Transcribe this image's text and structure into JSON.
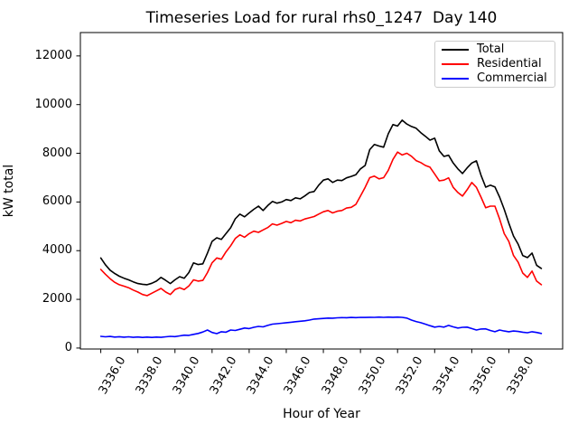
{
  "chart_data": {
    "type": "line",
    "title": "Timeseries Load for rural rhs0_1247  Day 140",
    "xlabel": "Hour of Year",
    "ylabel": "kW total",
    "xlim": [
      3334.9,
      3360.9
    ],
    "ylim": [
      -40,
      12960
    ],
    "grid": false,
    "legend_position": "upper right",
    "xticks": {
      "values": [
        3336,
        3338,
        3340,
        3342,
        3344,
        3346,
        3348,
        3350,
        3352,
        3354,
        3356,
        3358
      ],
      "labels": [
        "3336.0",
        "3338.0",
        "3340.0",
        "3342.0",
        "3344.0",
        "3346.0",
        "3348.0",
        "3350.0",
        "3352.0",
        "3354.0",
        "3356.0",
        "3358.0"
      ]
    },
    "yticks": {
      "values": [
        0,
        2000,
        4000,
        6000,
        8000,
        10000,
        12000
      ],
      "labels": [
        "0",
        "2000",
        "4000",
        "6000",
        "8000",
        "10000",
        "12000"
      ]
    },
    "x_start": 3336.0,
    "x_step": 0.25,
    "series": [
      {
        "name": "Total",
        "color": "#000000",
        "values": [
          3700,
          3420,
          3200,
          3060,
          2950,
          2870,
          2800,
          2720,
          2650,
          2620,
          2600,
          2660,
          2750,
          2900,
          2780,
          2650,
          2800,
          2930,
          2870,
          3100,
          3500,
          3430,
          3460,
          3900,
          4380,
          4530,
          4460,
          4700,
          4940,
          5310,
          5500,
          5390,
          5550,
          5700,
          5830,
          5650,
          5850,
          6020,
          5950,
          6000,
          6100,
          6060,
          6170,
          6130,
          6250,
          6390,
          6430,
          6690,
          6900,
          6950,
          6800,
          6900,
          6880,
          6990,
          7050,
          7120,
          7360,
          7500,
          8150,
          8360,
          8300,
          8250,
          8800,
          9180,
          9120,
          9360,
          9200,
          9100,
          9030,
          8850,
          8700,
          8540,
          8620,
          8100,
          7870,
          7920,
          7600,
          7360,
          7170,
          7400,
          7600,
          7690,
          7100,
          6610,
          6690,
          6620,
          6200,
          5700,
          5130,
          4600,
          4270,
          3800,
          3715,
          3900,
          3400,
          3270
        ]
      },
      {
        "name": "Residential",
        "color": "#ff0000",
        "values": [
          3230,
          3030,
          2850,
          2700,
          2600,
          2540,
          2480,
          2380,
          2300,
          2200,
          2150,
          2250,
          2350,
          2450,
          2300,
          2200,
          2400,
          2480,
          2400,
          2550,
          2800,
          2750,
          2780,
          3100,
          3500,
          3700,
          3650,
          3950,
          4200,
          4500,
          4650,
          4550,
          4700,
          4800,
          4750,
          4850,
          4950,
          5100,
          5050,
          5120,
          5200,
          5150,
          5250,
          5220,
          5300,
          5350,
          5400,
          5500,
          5600,
          5650,
          5550,
          5620,
          5650,
          5750,
          5780,
          5900,
          6240,
          6600,
          7000,
          7060,
          6950,
          7000,
          7300,
          7750,
          8050,
          7930,
          8000,
          7880,
          7700,
          7620,
          7500,
          7430,
          7150,
          6870,
          6900,
          6990,
          6600,
          6390,
          6240,
          6500,
          6800,
          6600,
          6200,
          5760,
          5830,
          5830,
          5300,
          4700,
          4380,
          3800,
          3530,
          3080,
          2900,
          3160,
          2750,
          2600
        ]
      },
      {
        "name": "Commercial",
        "color": "#0000ff",
        "values": [
          480,
          460,
          475,
          450,
          465,
          445,
          460,
          440,
          455,
          435,
          450,
          435,
          450,
          440,
          460,
          480,
          470,
          500,
          530,
          520,
          560,
          600,
          660,
          740,
          640,
          590,
          670,
          650,
          740,
          720,
          770,
          820,
          800,
          850,
          890,
          870,
          930,
          980,
          1000,
          1020,
          1040,
          1060,
          1080,
          1100,
          1120,
          1150,
          1190,
          1200,
          1215,
          1230,
          1225,
          1240,
          1250,
          1245,
          1255,
          1250,
          1260,
          1255,
          1265,
          1260,
          1270,
          1260,
          1270,
          1265,
          1270,
          1260,
          1230,
          1150,
          1090,
          1040,
          980,
          920,
          860,
          890,
          860,
          930,
          870,
          820,
          850,
          860,
          800,
          740,
          780,
          790,
          720,
          670,
          740,
          700,
          670,
          700,
          680,
          650,
          630,
          670,
          640,
          600
        ]
      }
    ]
  }
}
